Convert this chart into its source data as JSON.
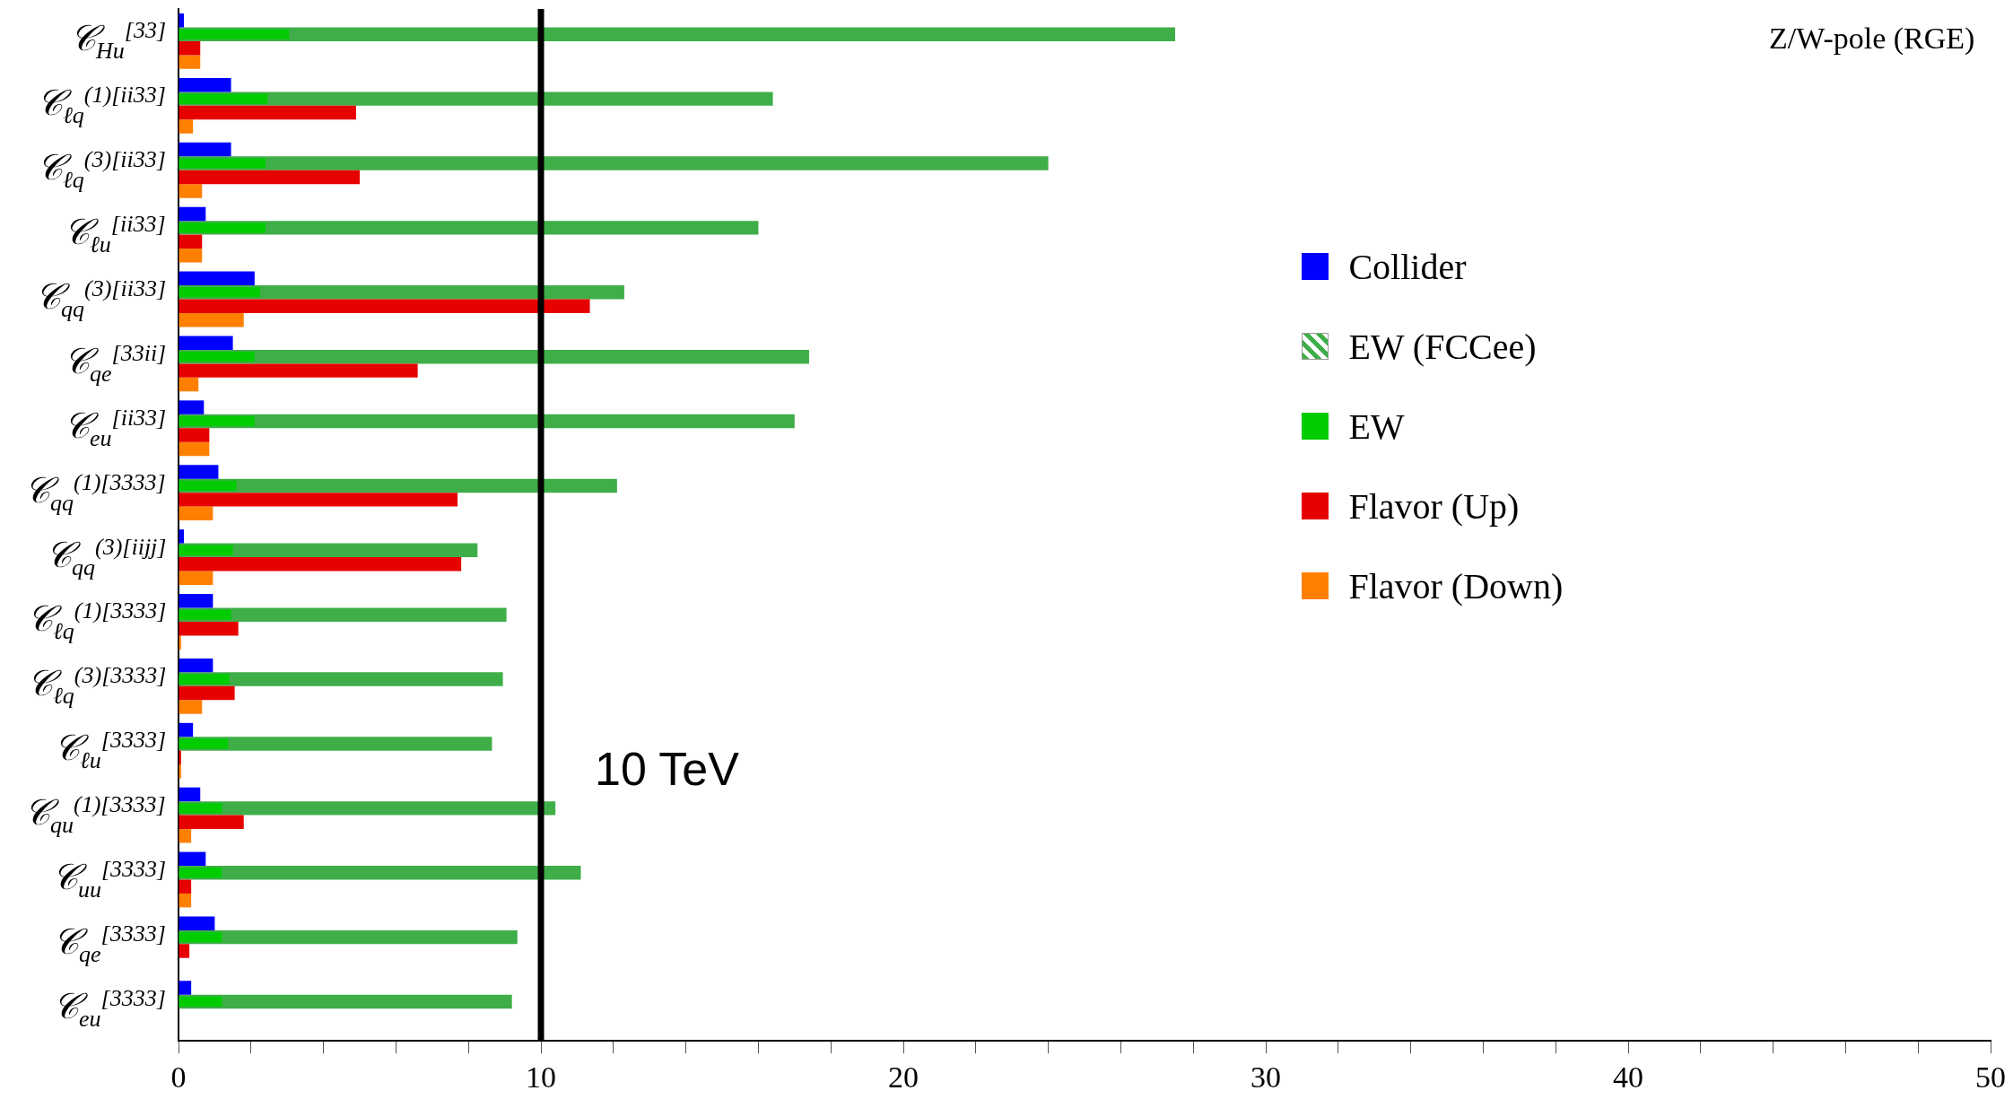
{
  "chart_data": {
    "type": "bar",
    "orientation": "horizontal",
    "title": "Z/W-pole (RGE)",
    "categories": [
      "𝒞$_{Hu}$$^{[33]}$",
      "𝒞$_{ℓq}$$^{(1)[ii33]}$",
      "𝒞$_{ℓq}$$^{(3)[ii33]}$",
      "𝒞$_{ℓu}$$^{[ii33]}$",
      "𝒞$_{qq}$$^{(3)[ii33]}$",
      "𝒞$_{qe}$$^{[33ii]}$",
      "𝒞$_{eu}$$^{[ii33]}$",
      "𝒞$_{qq}$$^{(1)[3333]}$",
      "𝒞$_{qq}$$^{(3)[iijj]}$",
      "𝒞$_{ℓq}$$^{(1)[3333]}$",
      "𝒞$_{ℓq}$$^{(3)[3333]}$",
      "𝒞$_{ℓu}$$^{[3333]}$",
      "𝒞$_{qu}$$^{(1)[3333]}$",
      "𝒞$_{uu}$$^{[3333]}$",
      "𝒞$_{qe}$$^{[3333]}$",
      "𝒞$_{eu}$$^{[3333]}$"
    ],
    "series": [
      {
        "name": "Collider",
        "color": "#0000ff",
        "values": [
          0.15,
          1.45,
          1.45,
          0.75,
          2.1,
          1.5,
          0.7,
          1.1,
          0.15,
          0.95,
          0.95,
          0.4,
          0.6,
          0.75,
          1.0,
          0.35
        ]
      },
      {
        "name": "EW (FCCee)",
        "color": "#3fae49",
        "line_style": "dashed",
        "values": [
          27.5,
          16.4,
          24.0,
          16.0,
          12.3,
          17.4,
          17.0,
          12.1,
          8.25,
          9.05,
          8.95,
          8.65,
          10.4,
          11.1,
          9.35,
          9.2
        ]
      },
      {
        "name": "EW",
        "color": "#00cc00",
        "values": [
          3.05,
          2.45,
          2.4,
          2.4,
          2.25,
          2.1,
          2.1,
          1.6,
          1.5,
          1.45,
          1.4,
          1.37,
          1.2,
          1.2,
          1.2,
          1.2
        ]
      },
      {
        "name": "Flavor (Up)",
        "color": "#e60000",
        "values": [
          0.6,
          4.9,
          5.0,
          0.65,
          11.35,
          6.6,
          0.85,
          7.7,
          7.8,
          1.65,
          1.55,
          0.07,
          1.8,
          0.35,
          0.3,
          null
        ]
      },
      {
        "name": "Flavor (Down)",
        "color": "#ff8000",
        "values": [
          0.6,
          0.4,
          0.65,
          0.65,
          1.8,
          0.55,
          0.85,
          0.95,
          0.95,
          0.07,
          0.65,
          0.07,
          0.35,
          0.35,
          null,
          null
        ]
      }
    ],
    "xlim": [
      0,
      50
    ],
    "xticks": [
      0,
      {
        "value": 2,
        "label": null
      },
      {
        "value": 4,
        "label": null
      },
      {
        "value": 6,
        "label": null
      },
      {
        "value": 8,
        "label": null
      },
      10,
      {
        "value": 12,
        "label": null
      },
      {
        "value": 14,
        "label": null
      },
      {
        "value": 16,
        "label": null
      },
      {
        "value": 18,
        "label": null
      },
      20,
      {
        "value": 22,
        "label": null
      },
      {
        "value": 24,
        "label": null
      },
      {
        "value": 26,
        "label": null
      },
      {
        "value": 28,
        "label": null
      },
      30,
      {
        "value": 32,
        "label": null
      },
      {
        "value": 34,
        "label": null
      },
      {
        "value": 36,
        "label": null
      },
      {
        "value": 38,
        "label": null
      },
      40,
      {
        "value": 42,
        "label": null
      },
      {
        "value": 44,
        "label": null
      },
      {
        "value": 46,
        "label": null
      },
      {
        "value": 48,
        "label": null
      },
      50
    ],
    "ref_lines": [
      {
        "axis": "x",
        "value": 10,
        "label": "10 TeV",
        "color": "#000000"
      }
    ],
    "grid": false,
    "legend": "right"
  }
}
